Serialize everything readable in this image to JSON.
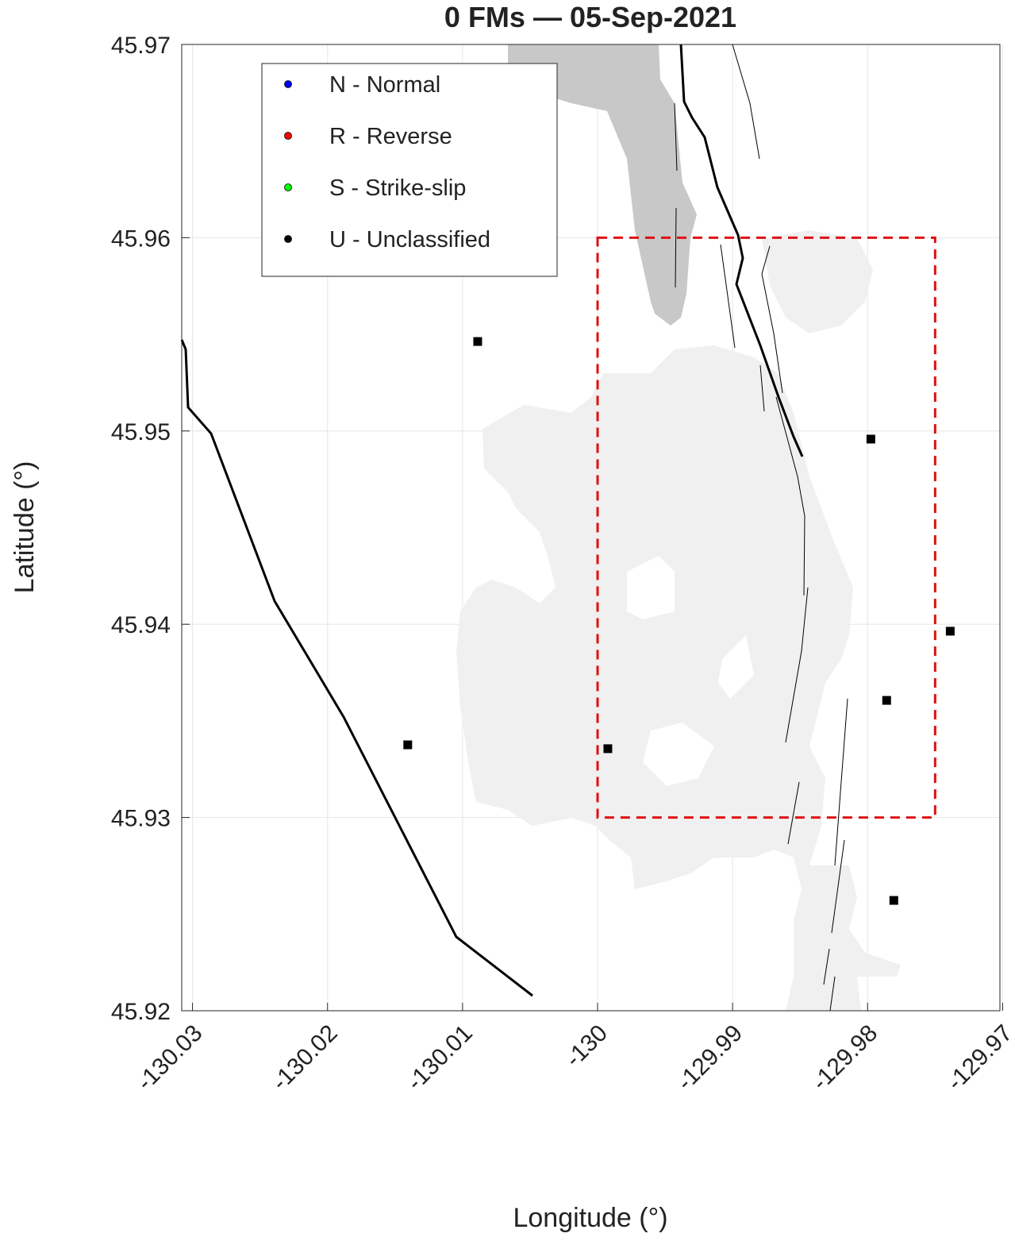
{
  "chart_data": {
    "type": "scatter",
    "title": "0 FMs  —  05-Sep-2021",
    "x_label": "Longitude (°)",
    "y_label": "Latitude (°)",
    "xlim": [
      -130.0308,
      -129.9702
    ],
    "ylim": [
      45.92,
      45.97
    ],
    "xticks": [
      -130.03,
      -130.02,
      -130.01,
      -130,
      -129.99,
      -129.98,
      -129.97
    ],
    "yticks": [
      45.92,
      45.93,
      45.94,
      45.95,
      45.96,
      45.97
    ],
    "grid": true,
    "legend": "top-left",
    "series": [
      {
        "name": "N - Normal",
        "color": "#0000ff",
        "x": [],
        "y": []
      },
      {
        "name": "R - Reverse",
        "color": "#ff0000",
        "x": [],
        "y": []
      },
      {
        "name": "S - Strike-slip",
        "color": "#00ff00",
        "x": [],
        "y": []
      },
      {
        "name": "U - Unclassified",
        "color": "#000000",
        "x": [],
        "y": []
      }
    ],
    "points": {
      "color": "#000000",
      "x": [
        -130.00888,
        -129.97976,
        -129.97388,
        -129.97859,
        -130.01406,
        -129.99924,
        -129.97806
      ],
      "y": [
        45.95463,
        45.94958,
        45.93964,
        45.93606,
        45.93376,
        45.93356,
        45.92571
      ]
    },
    "box": {
      "color": "#e01010",
      "x": [
        -130,
        -129.975
      ],
      "y": [
        45.93,
        45.96
      ]
    }
  }
}
